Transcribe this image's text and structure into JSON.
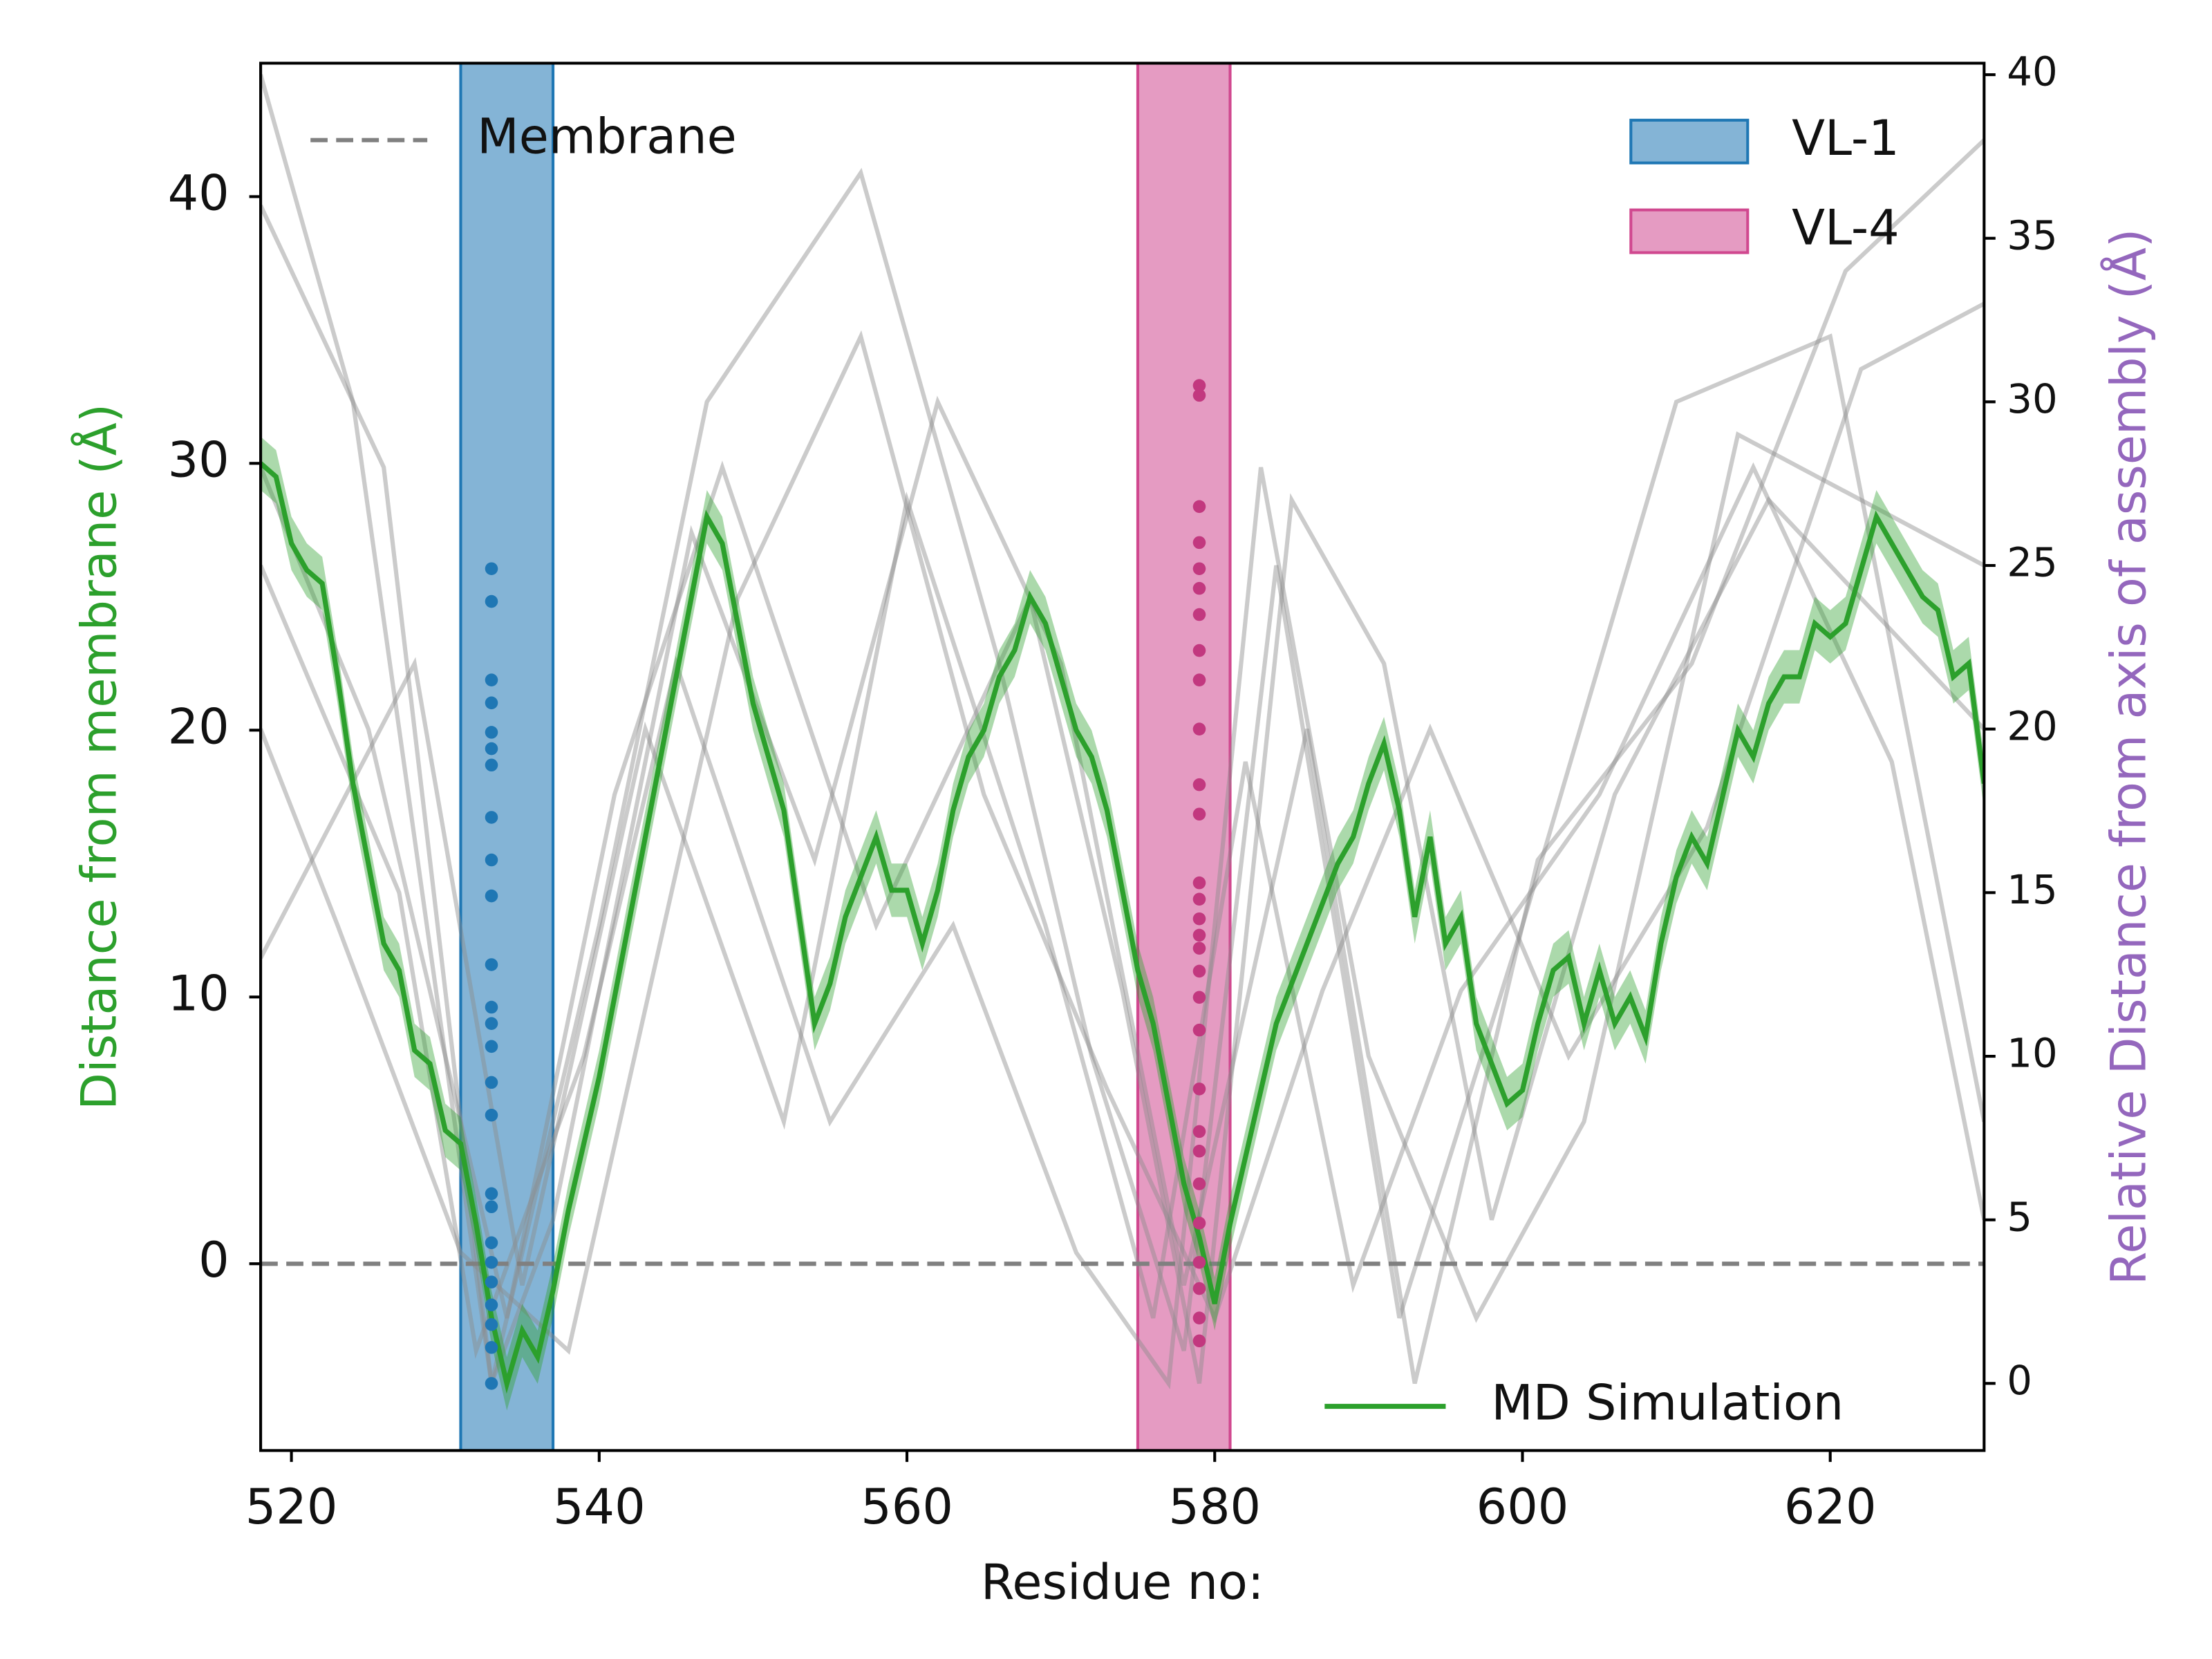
{
  "chart_data": {
    "type": "line",
    "xlabel": "Residue no:",
    "ylabel": "Distance from membrane (Å)",
    "y2label": "Relative Distance from axis of assembly (Å)",
    "xlim": [
      518,
      630
    ],
    "ylim": [
      -7,
      45
    ],
    "y2lim": [
      -2.05,
      40.35
    ],
    "xticks": [
      520,
      540,
      560,
      580,
      600,
      620
    ],
    "yticks": [
      0,
      10,
      20,
      30,
      40
    ],
    "y2ticks": [
      0,
      5,
      10,
      15,
      20,
      25,
      30,
      35,
      40
    ],
    "reference_line": {
      "name": "Membrane",
      "value": 0,
      "color": "#808080"
    },
    "regions": [
      {
        "name": "VL-1",
        "range": [
          531,
          537
        ],
        "color": "#1f77b4"
      },
      {
        "name": "VL-4",
        "range": [
          575,
          581
        ],
        "color": "#d0488f"
      }
    ],
    "series": [
      {
        "name": "MD Simulation",
        "color": "#2ca02c",
        "band": 1,
        "x": [
          518,
          519,
          520,
          521,
          522,
          523,
          524,
          525,
          526,
          527,
          528,
          529,
          530,
          531,
          532,
          533,
          534,
          535,
          536,
          537,
          538,
          539,
          540,
          541,
          542,
          543,
          544,
          545,
          546,
          547,
          548,
          549,
          550,
          551,
          552,
          553,
          554,
          555,
          556,
          557,
          558,
          559,
          560,
          561,
          562,
          563,
          564,
          565,
          566,
          567,
          568,
          569,
          570,
          571,
          572,
          573,
          574,
          575,
          576,
          577,
          578,
          579,
          580,
          581,
          582,
          583,
          584,
          585,
          586,
          587,
          588,
          589,
          590,
          591,
          592,
          593,
          594,
          595,
          596,
          597,
          598,
          599,
          600,
          601,
          602,
          603,
          604,
          605,
          606,
          607,
          608,
          609,
          610,
          611,
          612,
          613,
          614,
          615,
          616,
          617,
          618,
          619,
          620,
          621,
          622,
          623,
          624,
          625,
          626,
          627,
          628,
          629,
          630
        ],
        "values": [
          30,
          29.5,
          27,
          26,
          25.5,
          22,
          18,
          15,
          12,
          11,
          8,
          7.5,
          5,
          4.5,
          1.5,
          -2,
          -4.5,
          -2.5,
          -3.5,
          -1,
          2,
          4.5,
          7,
          10,
          13,
          16,
          19,
          22,
          25,
          28,
          27,
          24,
          21,
          19,
          17,
          13,
          9,
          10.5,
          13,
          14.5,
          16,
          14,
          14,
          12,
          14,
          17,
          19,
          20,
          22,
          23,
          25,
          24,
          22,
          20,
          19,
          17,
          14,
          11,
          9,
          6,
          3,
          1,
          -1.5,
          1.5,
          4,
          6.5,
          9,
          10.5,
          12,
          13.5,
          15,
          16,
          18,
          19.5,
          17,
          13,
          16,
          12,
          13,
          9,
          7.5,
          6,
          6.5,
          9,
          11,
          11.5,
          9,
          11,
          9,
          10,
          8.5,
          12,
          14.5,
          16,
          15,
          17.5,
          20,
          19,
          21,
          22,
          22,
          24,
          23.5,
          24,
          26,
          28,
          27,
          26,
          25,
          24.5,
          22,
          22.5,
          18
        ]
      }
    ],
    "traces": [
      {
        "axis": "y2",
        "color": "#8c8c8c",
        "x": [
          518,
          526,
          533,
          540,
          547,
          557,
          566,
          572,
          578,
          584,
          592,
          600,
          610,
          620,
          630
        ],
        "values": [
          36,
          28,
          0,
          14,
          30,
          37,
          22,
          10,
          1,
          25,
          2,
          14,
          30,
          32,
          8
        ]
      },
      {
        "axis": "y2",
        "color": "#8c8c8c",
        "x": [
          518,
          525,
          534,
          541,
          548,
          558,
          568,
          574,
          579,
          585,
          591,
          598,
          606,
          616,
          630
        ],
        "values": [
          28,
          20,
          2,
          18,
          28,
          14,
          24,
          12,
          0,
          27,
          22,
          5,
          18,
          27,
          20
        ]
      },
      {
        "axis": "y2",
        "color": "#8c8c8c",
        "x": [
          518,
          527,
          532,
          539,
          545,
          555,
          563,
          571,
          577,
          583,
          590,
          597,
          604,
          614,
          630
        ],
        "values": [
          25,
          15,
          1,
          10,
          22,
          8,
          14,
          4,
          0,
          28,
          10,
          2,
          8,
          29,
          25
        ]
      },
      {
        "axis": "y2",
        "color": "#8c8c8c",
        "x": [
          518,
          523,
          531,
          538,
          549,
          557,
          565,
          573,
          580,
          587,
          594,
          603,
          612,
          622,
          630
        ],
        "values": [
          20,
          14,
          4,
          1,
          24,
          32,
          18,
          9,
          2,
          12,
          20,
          10,
          17,
          31,
          33
        ]
      },
      {
        "axis": "y2",
        "color": "#8c8c8c",
        "x": [
          518,
          528,
          535,
          543,
          552,
          560,
          569,
          576,
          582,
          589,
          596,
          605,
          615,
          624,
          630
        ],
        "values": [
          13,
          22,
          3,
          20,
          8,
          27,
          14,
          2,
          19,
          3,
          12,
          18,
          28,
          19,
          5
        ]
      },
      {
        "axis": "y2",
        "color": "#8c8c8c",
        "x": [
          518,
          524,
          533,
          537,
          546,
          554,
          562,
          570,
          578,
          586,
          593,
          601,
          611,
          621,
          630
        ],
        "values": [
          40,
          30,
          0,
          5,
          26,
          16,
          30,
          22,
          3,
          20,
          0,
          16,
          22,
          34,
          38
        ]
      }
    ],
    "points": [
      {
        "axis": "y2",
        "color": "#1f77b4",
        "x": 533,
        "values": [
          24.9,
          23.9,
          21.5,
          20.8,
          19.9,
          19.4,
          18.9,
          17.3,
          16.0,
          14.9,
          12.8,
          11.5,
          11.0,
          10.3,
          9.2,
          8.2,
          5.8,
          5.4,
          4.3,
          3.7,
          3.1,
          2.4,
          1.8,
          1.1,
          0
        ]
      },
      {
        "axis": "y2",
        "color": "#c2387f",
        "x": 579,
        "values": [
          30.5,
          30.2,
          26.8,
          25.7,
          24.9,
          24.3,
          23.5,
          22.4,
          21.5,
          20.0,
          18.3,
          17.4,
          15.3,
          14.8,
          14.2,
          13.7,
          13.3,
          12.6,
          11.8,
          10.8,
          9.0,
          7.7,
          7.1,
          6.1,
          4.9,
          3.7,
          2.9,
          2.0,
          1.3
        ]
      }
    ]
  }
}
